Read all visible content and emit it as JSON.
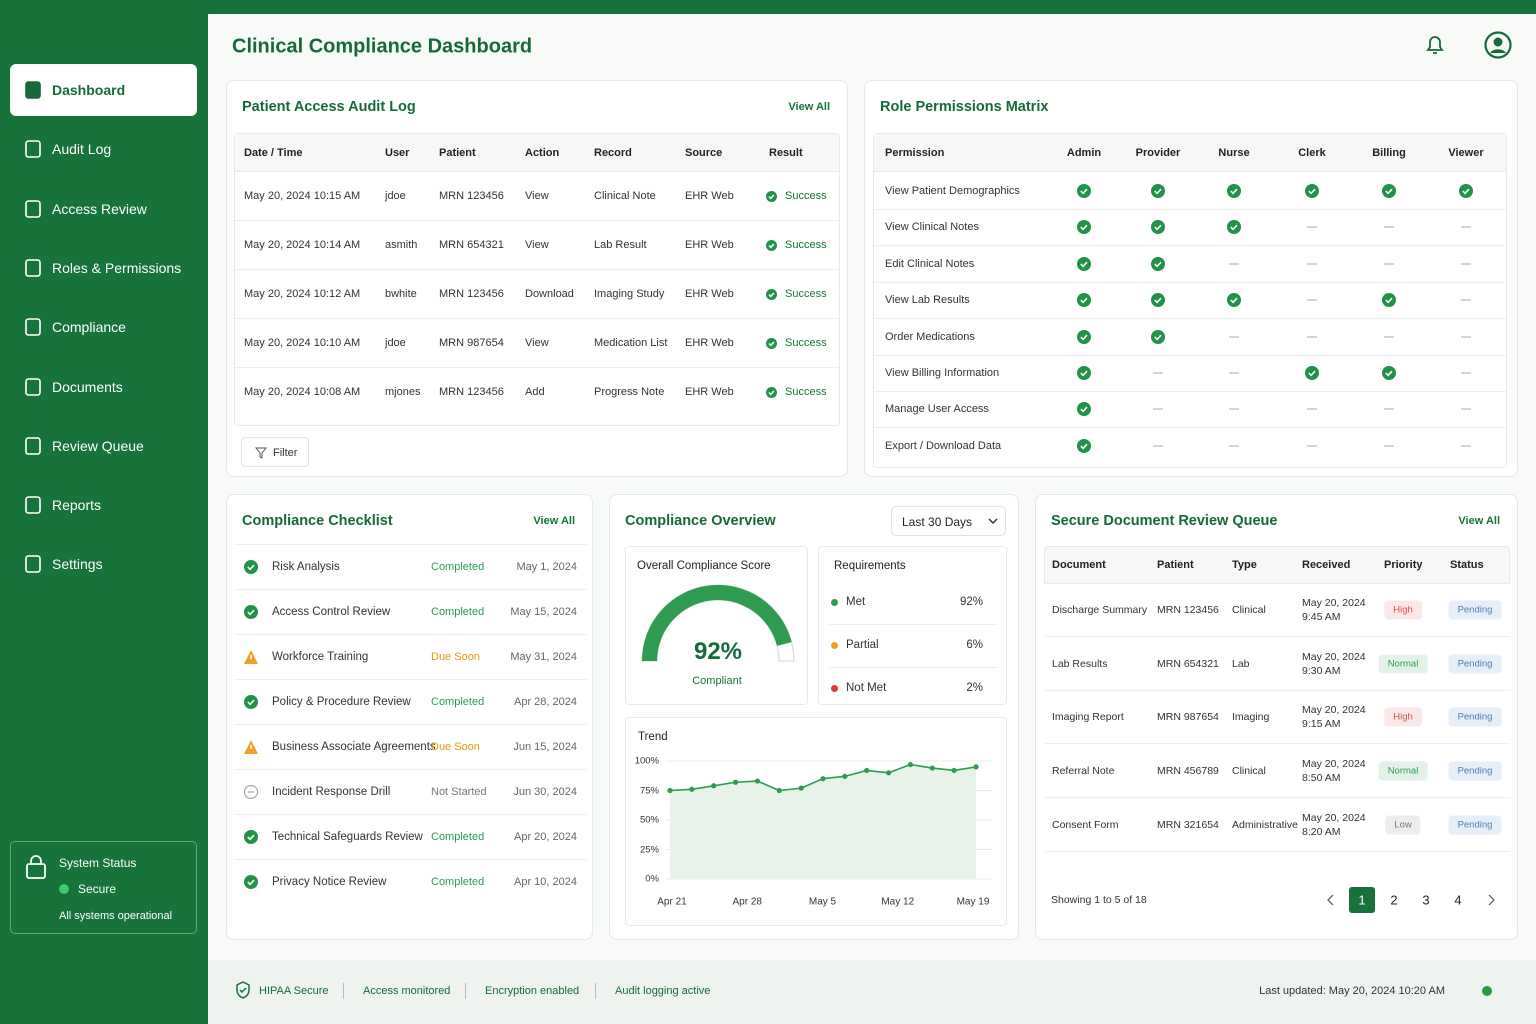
{
  "sidebar": {
    "nav": [
      "Dashboard",
      "Audit Log",
      "Access Review",
      "Roles & Permissions",
      "Compliance",
      "Documents",
      "Review Queue",
      "Reports",
      "Settings"
    ],
    "active": 0,
    "system_status": {
      "title": "System Status",
      "status": "Secure",
      "message": "All systems operational"
    }
  },
  "header": {
    "title": "Clinical Compliance Dashboard"
  },
  "audit_log": {
    "title": "Patient Access Audit Log",
    "view_all": "View All",
    "columns": [
      "Date / Time",
      "User",
      "Patient",
      "Action",
      "Record",
      "Source",
      "Result"
    ],
    "rows": [
      [
        "May 20, 2024 10:15 AM",
        "jdoe",
        "MRN 123456",
        "View",
        "Clinical Note",
        "EHR Web",
        "Success"
      ],
      [
        "May 20, 2024 10:14 AM",
        "asmith",
        "MRN 654321",
        "View",
        "Lab Result",
        "EHR Web",
        "Success"
      ],
      [
        "May 20, 2024 10:12 AM",
        "bwhite",
        "MRN 123456",
        "Download",
        "Imaging Study",
        "EHR Web",
        "Success"
      ],
      [
        "May 20, 2024 10:10 AM",
        "jdoe",
        "MRN 987654",
        "View",
        "Medication List",
        "EHR Web",
        "Success"
      ],
      [
        "May 20, 2024 10:08 AM",
        "mjones",
        "MRN 123456",
        "Add",
        "Progress Note",
        "EHR Web",
        "Success"
      ]
    ],
    "filter": "Filter"
  },
  "permissions": {
    "title": "Role Permissions Matrix",
    "columns": [
      "Permission",
      "Admin",
      "Provider",
      "Nurse",
      "Clerk",
      "Billing",
      "Viewer"
    ],
    "rows": [
      {
        "permission": "View Patient Demographics",
        "values": [
          true,
          true,
          true,
          true,
          true,
          true
        ]
      },
      {
        "permission": "View Clinical Notes",
        "values": [
          true,
          true,
          true,
          false,
          false,
          false
        ]
      },
      {
        "permission": "Edit Clinical Notes",
        "values": [
          true,
          true,
          false,
          false,
          false,
          false
        ]
      },
      {
        "permission": "View Lab Results",
        "values": [
          true,
          true,
          true,
          false,
          true,
          false
        ]
      },
      {
        "permission": "Order Medications",
        "values": [
          true,
          true,
          false,
          false,
          false,
          false
        ]
      },
      {
        "permission": "View Billing Information",
        "values": [
          true,
          false,
          false,
          true,
          true,
          false
        ]
      },
      {
        "permission": "Manage User Access",
        "values": [
          true,
          false,
          false,
          false,
          false,
          false
        ]
      },
      {
        "permission": "Export / Download Data",
        "values": [
          true,
          false,
          false,
          false,
          false,
          false
        ]
      }
    ]
  },
  "checklist": {
    "title": "Compliance Checklist",
    "view_all": "View All",
    "items": [
      {
        "name": "Risk Analysis",
        "status": "Completed",
        "date": "May 1, 2024",
        "icon": "check"
      },
      {
        "name": "Access Control Review",
        "status": "Completed",
        "date": "May 15, 2024",
        "icon": "check"
      },
      {
        "name": "Workforce Training",
        "status": "Due Soon",
        "date": "May 31, 2024",
        "icon": "warn"
      },
      {
        "name": "Policy & Procedure Review",
        "status": "Completed",
        "date": "Apr 28, 2024",
        "icon": "check"
      },
      {
        "name": "Business Associate Agreements",
        "status": "Due Soon",
        "date": "Jun 15, 2024",
        "icon": "warn"
      },
      {
        "name": "Incident Response Drill",
        "status": "Not Started",
        "date": "Jun 30, 2024",
        "icon": "empty"
      },
      {
        "name": "Technical Safeguards Review",
        "status": "Completed",
        "date": "Apr 20, 2024",
        "icon": "check"
      },
      {
        "name": "Privacy Notice Review",
        "status": "Completed",
        "date": "Apr 10, 2024",
        "icon": "check"
      }
    ]
  },
  "overview": {
    "title": "Compliance Overview",
    "range": "Last 30 Days",
    "score": {
      "title": "Overall Compliance Score",
      "value": 92,
      "value_label": "92%",
      "caption": "Compliant",
      "max": 100,
      "color": "#2e9b4f"
    },
    "requirements": {
      "title": "Requirements",
      "items": [
        {
          "name": "Met",
          "value": 92,
          "value_label": "92%",
          "color": "#2e9b4f"
        },
        {
          "name": "Partial",
          "value": 6,
          "value_label": "6%",
          "color": "#f0a02a"
        },
        {
          "name": "Not Met",
          "value": 2,
          "value_label": "2%",
          "color": "#d93a3a"
        }
      ]
    },
    "trend": {
      "type": "line",
      "title": "Trend",
      "xticks": [
        "Apr 21",
        "Apr 28",
        "May 5",
        "May 12",
        "May 19"
      ],
      "values": [
        75,
        76,
        79,
        82,
        83,
        75,
        77,
        85,
        87,
        92,
        90,
        97,
        94,
        92,
        95
      ],
      "color": "#2e9b4f",
      "ylim": [
        0,
        100
      ],
      "yticks": [
        {
          "value": 0,
          "label": "0%"
        },
        {
          "value": 25,
          "label": "25%"
        },
        {
          "value": 50,
          "label": "50%"
        },
        {
          "value": 75,
          "label": "75%"
        },
        {
          "value": 100,
          "label": "100%"
        }
      ],
      "grid": true
    }
  },
  "doc_queue": {
    "title": "Secure Document Review Queue",
    "view_all": "View All",
    "columns": [
      "Document",
      "Patient",
      "Type",
      "Received",
      "Priority",
      "Status"
    ],
    "rows": [
      {
        "document": "Discharge Summary",
        "patient": "MRN 123456",
        "type": "Clinical",
        "date": "May 20, 2024",
        "time": "9:45 AM",
        "priority": "High",
        "priority_color": "#d9534f",
        "status": "Pending"
      },
      {
        "document": "Lab Results",
        "patient": "MRN 654321",
        "type": "Lab",
        "date": "May 20, 2024",
        "time": "9:30 AM",
        "priority": "Normal",
        "priority_color": "#2e9b4f",
        "status": "Pending"
      },
      {
        "document": "Imaging Report",
        "patient": "MRN 987654",
        "type": "Imaging",
        "date": "May 20, 2024",
        "time": "9:15 AM",
        "priority": "High",
        "priority_color": "#d9534f",
        "status": "Pending"
      },
      {
        "document": "Referral Note",
        "patient": "MRN 456789",
        "type": "Clinical",
        "date": "May 20, 2024",
        "time": "8:50 AM",
        "priority": "Normal",
        "priority_color": "#2e9b4f",
        "status": "Pending"
      },
      {
        "document": "Consent Form",
        "patient": "MRN 321654",
        "type": "Administrative",
        "date": "May 20, 2024",
        "time": "8:20 AM",
        "priority": "Low",
        "priority_color": "#777777",
        "status": "Pending"
      }
    ],
    "showing": "Showing 1 to 5 of 18",
    "pages": [
      1,
      2,
      3,
      4
    ],
    "current": 1
  },
  "footer": {
    "items": [
      "HIPAA Secure",
      "Access monitored",
      "Encryption enabled",
      "Audit logging active"
    ],
    "last_updated": "Last updated: May 20, 2024 10:20 AM"
  }
}
